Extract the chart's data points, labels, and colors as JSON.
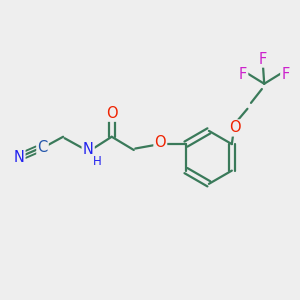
{
  "bg_color": "#eeeeee",
  "bond_color": "#3a7a5a",
  "bond_width": 1.6,
  "atom_colors": {
    "N": "#2222ee",
    "O": "#ee2200",
    "C": "#2255aa",
    "F": "#cc22cc",
    "H": "#2222ee"
  },
  "font_size_atom": 10.5,
  "font_size_small": 8.5,
  "xlim": [
    0,
    10
  ],
  "ylim": [
    0,
    10
  ]
}
